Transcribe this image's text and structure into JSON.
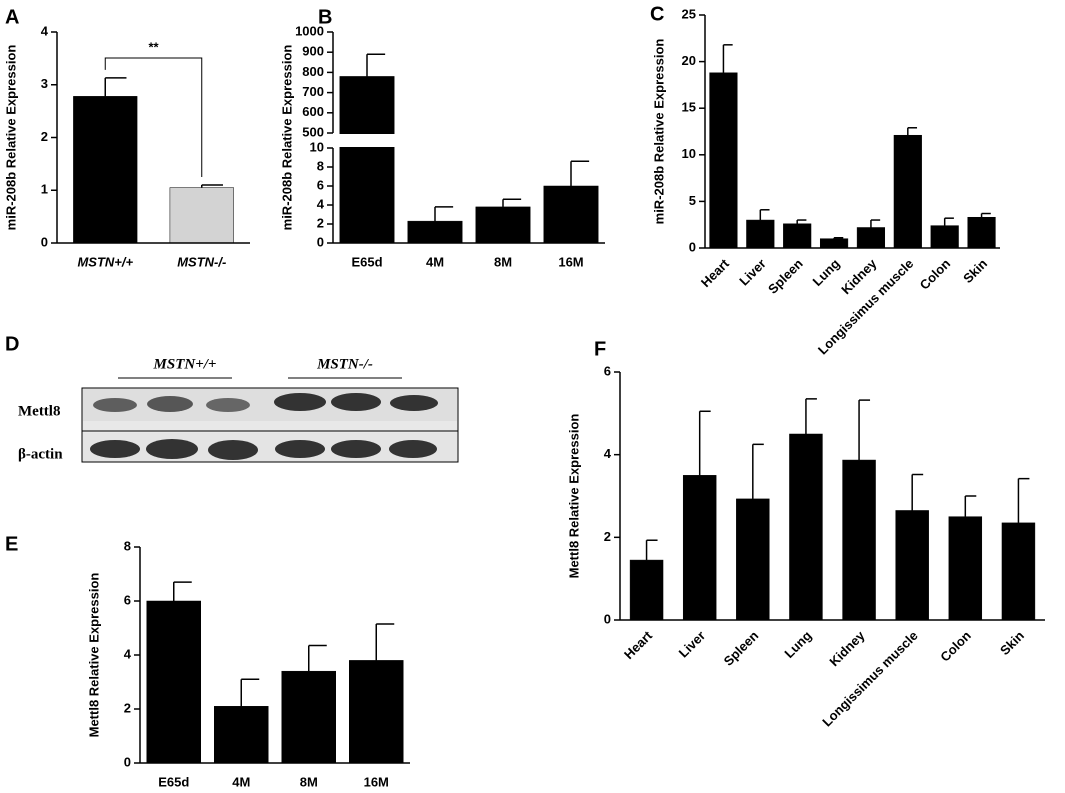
{
  "chart_data": [
    {
      "type": "bar",
      "label": "A",
      "ylabel": "miR-208b Relative Expression",
      "categories": [
        "MSTN+/+",
        "MSTN-/-"
      ],
      "values": [
        2.78,
        1.05
      ],
      "errors": [
        0.35,
        0.05
      ],
      "colors": [
        "#000000",
        "#d3d3d3"
      ],
      "ylim": [
        0,
        4
      ],
      "yticks": [
        0,
        1,
        2,
        3,
        4
      ],
      "annotation": "**"
    },
    {
      "type": "bar",
      "label": "B",
      "ylabel": "miR-208b Relative Expression",
      "categories": [
        "E65d",
        "4M",
        "8M",
        "16M"
      ],
      "values": [
        780,
        2.3,
        3.8,
        6.0
      ],
      "errors": [
        110,
        1.5,
        0.8,
        2.6
      ],
      "colors": [
        "#000000"
      ],
      "ylim": [
        0,
        1000
      ],
      "ybreak": [
        10,
        500
      ],
      "yticks": [
        0,
        2,
        4,
        6,
        8,
        10,
        500,
        600,
        700,
        800,
        900,
        1000
      ]
    },
    {
      "type": "bar",
      "label": "C",
      "ylabel": "miR-208b Relative Expression",
      "categories": [
        "Heart",
        "Liver",
        "Spleen",
        "Lung",
        "Kidney",
        "Longissimus muscle",
        "Colon",
        "Skin"
      ],
      "values": [
        18.8,
        3.0,
        2.6,
        1.0,
        2.2,
        12.1,
        2.4,
        3.3
      ],
      "errors": [
        3.0,
        1.1,
        0.4,
        0.1,
        0.8,
        0.8,
        0.8,
        0.4
      ],
      "colors": [
        "#000000"
      ],
      "ylim": [
        0,
        25
      ],
      "yticks": [
        0,
        5,
        10,
        15,
        20,
        25
      ]
    },
    {
      "type": "bar",
      "label": "E",
      "ylabel": "Mettl8 Relative Expression",
      "categories": [
        "E65d",
        "4M",
        "8M",
        "16M"
      ],
      "values": [
        6.0,
        2.1,
        3.4,
        3.8
      ],
      "errors": [
        0.7,
        1.0,
        0.95,
        1.35
      ],
      "colors": [
        "#000000"
      ],
      "ylim": [
        0,
        8
      ],
      "yticks": [
        0,
        2,
        4,
        6,
        8
      ]
    },
    {
      "type": "bar",
      "label": "F",
      "ylabel": "Mettl8 Relative Expression",
      "categories": [
        "Heart",
        "Liver",
        "Spleen",
        "Lung",
        "Kidney",
        "Longissimus muscle",
        "Colon",
        "Skin"
      ],
      "values": [
        1.45,
        3.5,
        2.93,
        4.5,
        3.87,
        2.65,
        2.5,
        2.35
      ],
      "errors": [
        0.48,
        1.55,
        1.32,
        0.85,
        1.45,
        0.87,
        0.5,
        1.07
      ],
      "colors": [
        "#000000"
      ],
      "ylim": [
        0,
        6
      ],
      "yticks": [
        0,
        2,
        4,
        6
      ]
    }
  ],
  "blot": {
    "label": "D",
    "groups": [
      "MSTN+/+",
      "MSTN-/-"
    ],
    "rows": [
      "Mettl8",
      "β-actin"
    ]
  }
}
